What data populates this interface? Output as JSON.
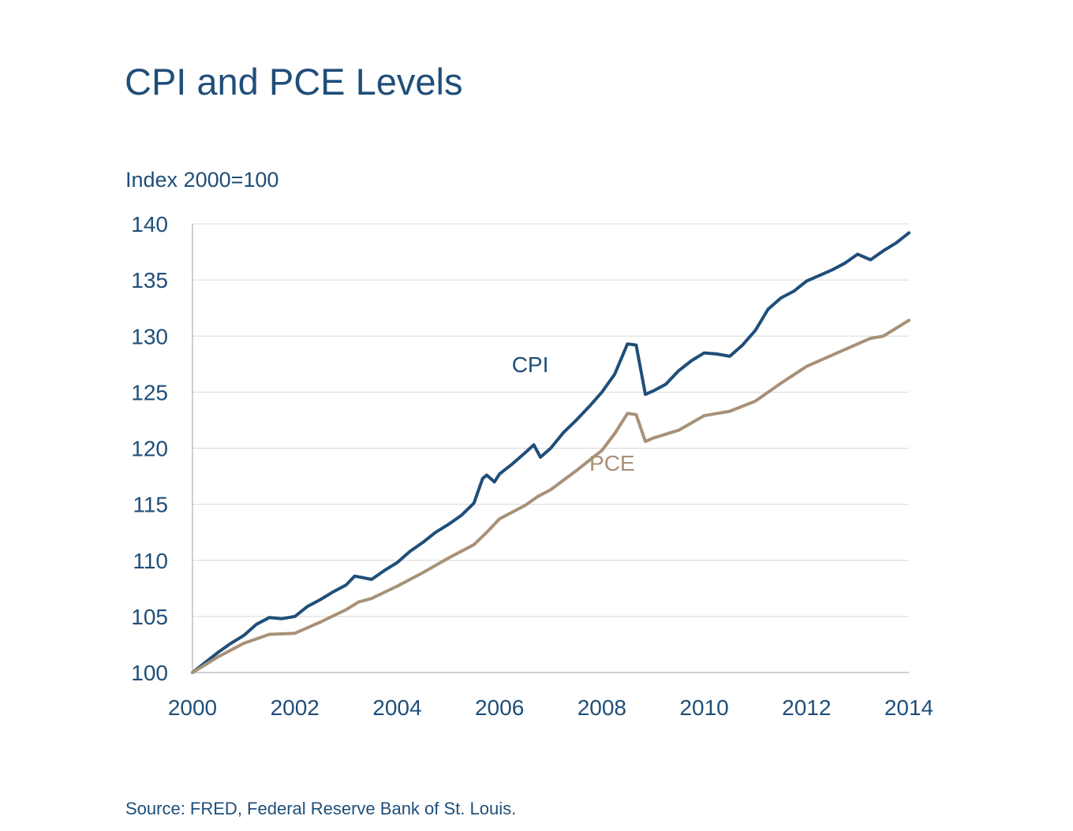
{
  "chart_data": {
    "type": "line",
    "title": "CPI and PCE Levels",
    "ylabel": "Index 2000=100",
    "source": "Source: FRED, Federal Reserve Bank of St. Louis.",
    "ylim": [
      100,
      140
    ],
    "xlim": [
      2000,
      2014
    ],
    "yticks": [
      100,
      105,
      110,
      115,
      120,
      125,
      130,
      135,
      140
    ],
    "xticks": [
      2000,
      2002,
      2004,
      2006,
      2008,
      2010,
      2012,
      2014
    ],
    "grid": true,
    "colors": {
      "CPI": "#1f4e79",
      "PCE": "#a89178",
      "grid": "#d9d9d9",
      "axis": "#bfbfbf",
      "text": "#1f4e79"
    },
    "series": [
      {
        "name": "CPI",
        "x": [
          2000,
          2000.25,
          2000.5,
          2000.75,
          2001,
          2001.25,
          2001.5,
          2001.75,
          2002,
          2002.25,
          2002.5,
          2002.75,
          2003,
          2003.17,
          2003.5,
          2003.75,
          2004,
          2004.25,
          2004.5,
          2004.75,
          2005,
          2005.25,
          2005.5,
          2005.67,
          2005.75,
          2005.9,
          2006,
          2006.25,
          2006.5,
          2006.67,
          2006.8,
          2007,
          2007.25,
          2007.5,
          2007.75,
          2008,
          2008.25,
          2008.5,
          2008.67,
          2008.85,
          2009,
          2009.25,
          2009.5,
          2009.75,
          2010,
          2010.25,
          2010.5,
          2010.75,
          2011,
          2011.25,
          2011.5,
          2011.75,
          2012,
          2012.25,
          2012.5,
          2012.75,
          2013,
          2013.25,
          2013.5,
          2013.75,
          2014
        ],
        "values": [
          100,
          100.9,
          101.8,
          102.6,
          103.3,
          104.3,
          104.9,
          104.8,
          105.0,
          105.9,
          106.5,
          107.2,
          107.8,
          108.6,
          108.3,
          109.1,
          109.8,
          110.8,
          111.6,
          112.5,
          113.2,
          114.0,
          115.1,
          117.3,
          117.6,
          117.0,
          117.7,
          118.6,
          119.6,
          120.3,
          119.2,
          120.0,
          121.4,
          122.5,
          123.7,
          125.0,
          126.6,
          129.3,
          129.2,
          124.8,
          125.1,
          125.7,
          126.9,
          127.8,
          128.5,
          128.4,
          128.2,
          129.2,
          130.5,
          132.4,
          133.4,
          134.0,
          134.9,
          135.4,
          135.9,
          136.5,
          137.3,
          136.8,
          137.6,
          138.3,
          139.2
        ]
      },
      {
        "name": "PCE",
        "x": [
          2000,
          2000.5,
          2001,
          2001.5,
          2002,
          2002.5,
          2003,
          2003.25,
          2003.5,
          2004,
          2004.5,
          2005,
          2005.5,
          2005.75,
          2006,
          2006.5,
          2006.75,
          2007,
          2007.5,
          2008,
          2008.25,
          2008.5,
          2008.67,
          2008.85,
          2009,
          2009.5,
          2010,
          2010.5,
          2011,
          2011.5,
          2012,
          2012.5,
          2013,
          2013.25,
          2013.5,
          2014
        ],
        "values": [
          100,
          101.4,
          102.6,
          103.4,
          103.5,
          104.5,
          105.6,
          106.3,
          106.6,
          107.7,
          108.9,
          110.2,
          111.4,
          112.5,
          113.7,
          114.9,
          115.7,
          116.3,
          118.0,
          119.8,
          121.3,
          123.1,
          123.0,
          120.6,
          120.9,
          121.6,
          122.9,
          123.3,
          124.2,
          125.8,
          127.3,
          128.3,
          129.3,
          129.8,
          130.0,
          131.4
        ]
      }
    ],
    "annotations": [
      {
        "text": "CPI",
        "series": "CPI",
        "x": 2006.6,
        "y": 126.8
      },
      {
        "text": "PCE",
        "series": "PCE",
        "x": 2008.2,
        "y": 118.0
      }
    ]
  }
}
